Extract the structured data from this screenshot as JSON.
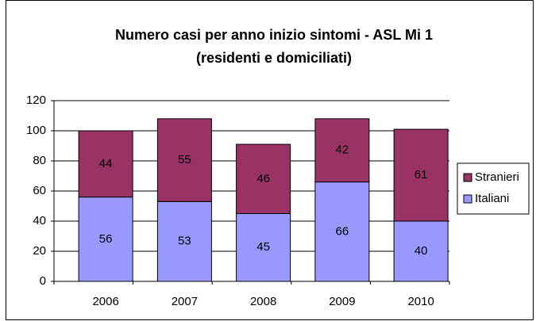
{
  "chart_data": {
    "type": "stacked_bar",
    "title": [
      "Numero casi per anno inizio sintomi - ASL Mi 1",
      "(residenti e domiciliati)"
    ],
    "categories": [
      "2006",
      "2007",
      "2008",
      "2009",
      "2010"
    ],
    "series": [
      {
        "name": "Italiani",
        "color": "#9999ff",
        "values": [
          56,
          53,
          45,
          66,
          40
        ]
      },
      {
        "name": "Stranieri",
        "color": "#993366",
        "values": [
          44,
          55,
          46,
          42,
          61
        ]
      }
    ],
    "ylim": [
      0,
      120
    ],
    "yticks": [
      0,
      20,
      40,
      60,
      80,
      100,
      120
    ],
    "grid": true,
    "legend": "right"
  }
}
